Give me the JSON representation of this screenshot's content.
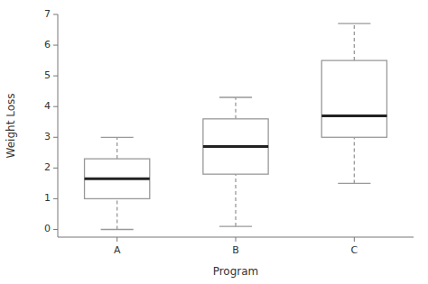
{
  "chart_data": {
    "type": "box",
    "categories": [
      "A",
      "B",
      "C"
    ],
    "boxes": [
      {
        "whislo": 0.0,
        "q1": 1.0,
        "med": 1.65,
        "q3": 2.3,
        "whishi": 3.0
      },
      {
        "whislo": 0.1,
        "q1": 1.8,
        "med": 2.7,
        "q3": 3.6,
        "whishi": 4.3
      },
      {
        "whislo": 1.5,
        "q1": 3.0,
        "med": 3.7,
        "q3": 5.5,
        "whishi": 6.7
      }
    ],
    "xlabel": "Program",
    "ylabel": "Weight Loss",
    "ylim": [
      -0.25,
      7.0
    ],
    "yticks": [
      0,
      1,
      2,
      3,
      4,
      5,
      6,
      7
    ],
    "color": "#999999",
    "grid": false
  }
}
